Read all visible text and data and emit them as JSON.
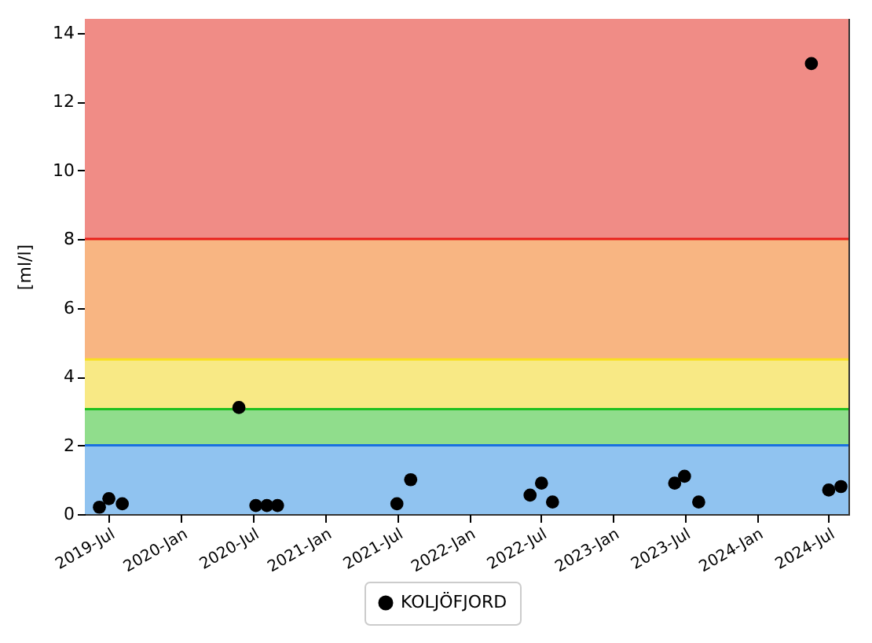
{
  "chart_data": {
    "type": "scatter",
    "ylabel": "[ml/l]",
    "x": [
      "2019-06-07",
      "2019-07-01",
      "2019-08-04",
      "2020-05-26",
      "2020-07-08",
      "2020-08-05",
      "2020-09-01",
      "2021-07-01",
      "2021-08-05",
      "2022-06-04",
      "2022-07-03",
      "2022-07-31",
      "2023-06-06",
      "2023-07-01",
      "2023-08-06",
      "2024-05-18",
      "2024-07-01",
      "2024-08-01"
    ],
    "series": [
      {
        "name": "KOLJÖFJORD",
        "color": "#000000",
        "values": [
          0.2,
          0.45,
          0.3,
          3.1,
          0.25,
          0.25,
          0.25,
          0.3,
          1.0,
          0.55,
          0.9,
          0.35,
          0.9,
          1.1,
          0.35,
          13.1,
          0.7,
          0.8
        ]
      }
    ],
    "xlim": [
      "2019-05-01",
      "2024-08-20"
    ],
    "xticks": [
      {
        "value": "2019-07-01",
        "label": "2019-Jul"
      },
      {
        "value": "2020-01-01",
        "label": "2020-Jan"
      },
      {
        "value": "2020-07-01",
        "label": "2020-Jul"
      },
      {
        "value": "2021-01-01",
        "label": "2021-Jan"
      },
      {
        "value": "2021-07-01",
        "label": "2021-Jul"
      },
      {
        "value": "2022-01-01",
        "label": "2022-Jan"
      },
      {
        "value": "2022-07-01",
        "label": "2022-Jul"
      },
      {
        "value": "2023-01-01",
        "label": "2023-Jan"
      },
      {
        "value": "2023-07-01",
        "label": "2023-Jul"
      },
      {
        "value": "2024-01-01",
        "label": "2024-Jan"
      },
      {
        "value": "2024-07-01",
        "label": "2024-Jul"
      }
    ],
    "ylim": [
      0,
      14.4
    ],
    "yticks": [
      0,
      2,
      4,
      6,
      8,
      10,
      12,
      14
    ],
    "bands": [
      {
        "axis": "y",
        "from": 0,
        "to": 2,
        "color": "#90c3f0"
      },
      {
        "axis": "y",
        "from": 2,
        "to": 3.05,
        "color": "#90dd8c"
      },
      {
        "axis": "y",
        "from": 3.05,
        "to": 4.5,
        "color": "#f8e985"
      },
      {
        "axis": "y",
        "from": 4.5,
        "to": 8,
        "color": "#f8b582"
      },
      {
        "axis": "y",
        "from": 8,
        "to": 14.4,
        "color": "#f08c86"
      }
    ],
    "ref_lines": [
      {
        "axis": "y",
        "value": 2,
        "color": "#1a70e0"
      },
      {
        "axis": "y",
        "value": 3.05,
        "color": "#20c020"
      },
      {
        "axis": "y",
        "value": 4.5,
        "color": "#f8e020"
      },
      {
        "axis": "y",
        "value": 8,
        "color": "#e8201a"
      }
    ],
    "marker": "circle",
    "legend": "bottom",
    "grid": false
  }
}
